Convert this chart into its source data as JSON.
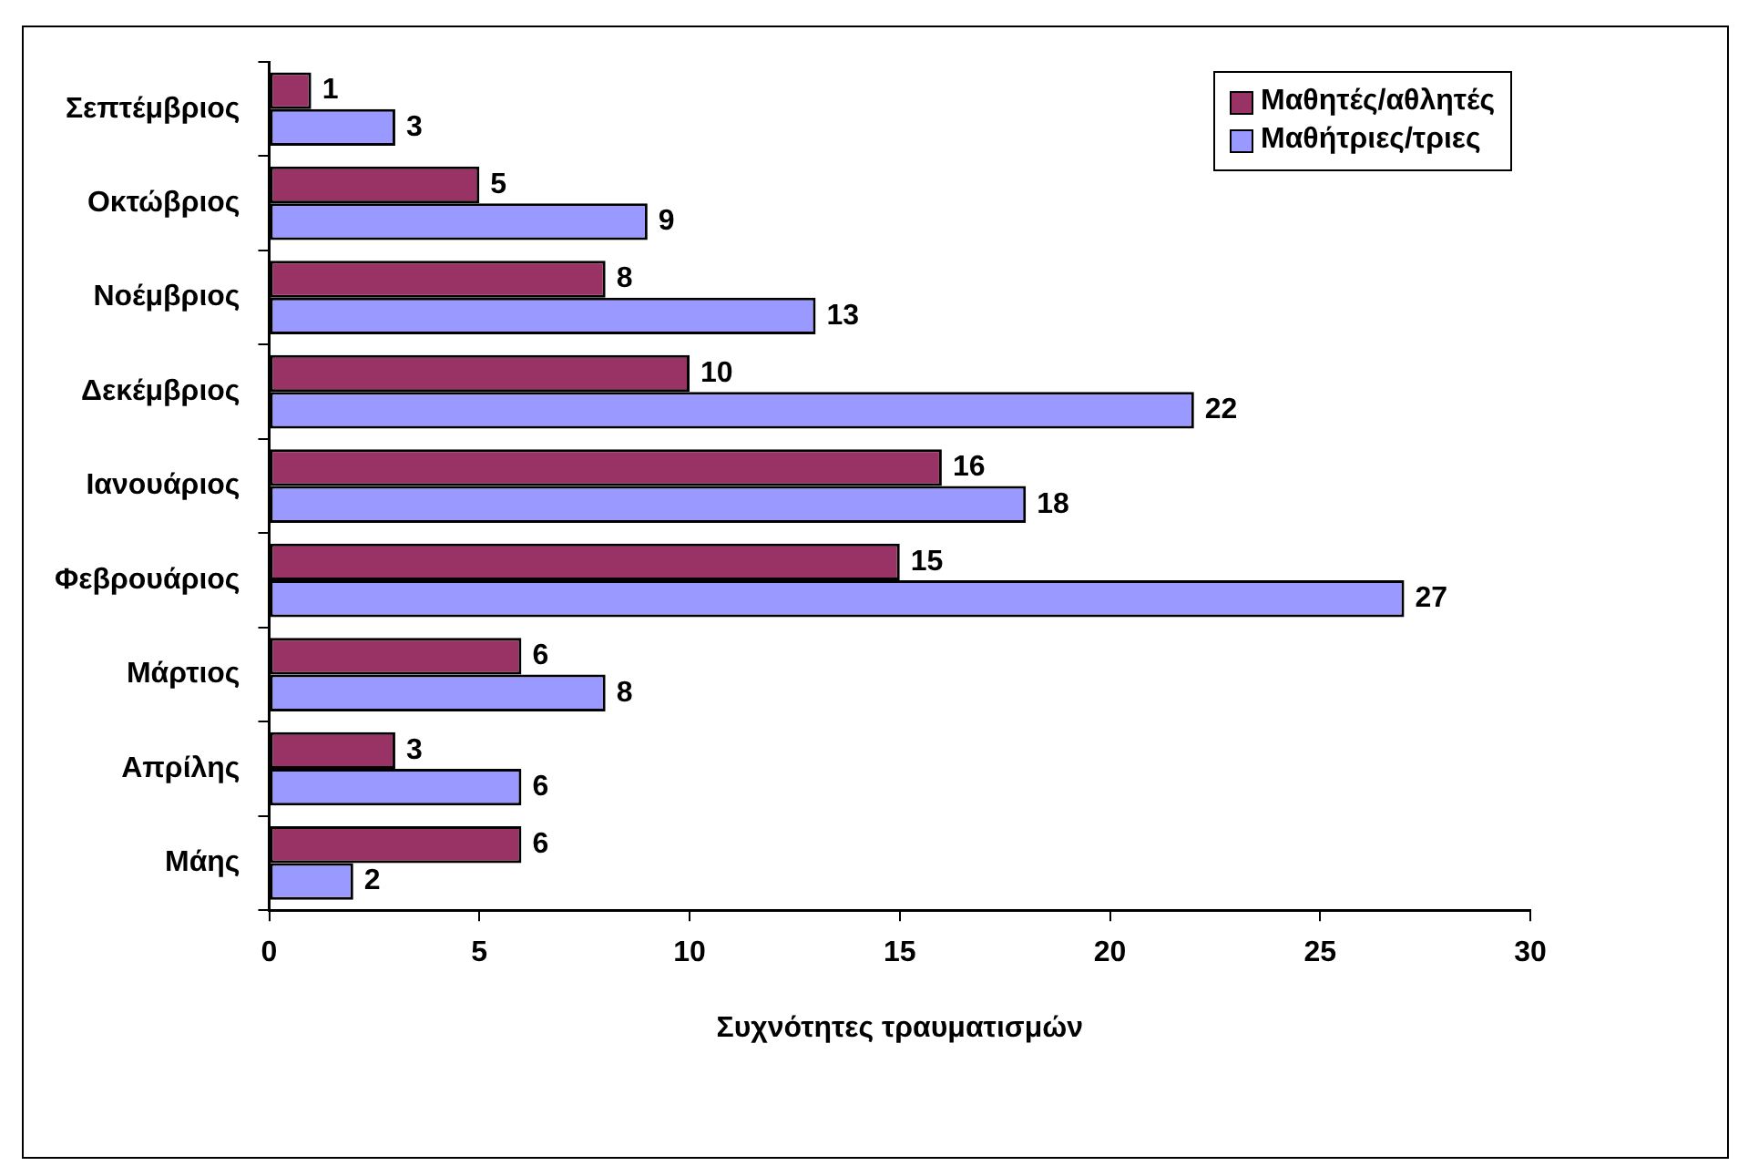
{
  "chart_data": {
    "type": "bar",
    "orientation": "horizontal",
    "xlabel": "Συχνότητες τραυματισμών",
    "categories": [
      "Σεπτέμβριος",
      "Οκτώβριος",
      "Νοέμβριος",
      "Δεκέμβριος",
      "Ιανουάριος",
      "Φεβρουάριος",
      "Μάρτιος",
      "Απρίλης",
      "Μάης"
    ],
    "series": [
      {
        "name": "Μαθητές/αθλητές",
        "color": "#993366",
        "values": [
          1,
          5,
          8,
          10,
          16,
          15,
          6,
          3,
          6
        ]
      },
      {
        "name": "Μαθήτριες/τριες",
        "color": "#9999ff",
        "values": [
          3,
          9,
          13,
          22,
          18,
          27,
          8,
          6,
          2
        ]
      }
    ],
    "xlim": [
      0,
      30
    ],
    "xticks": [
      0,
      5,
      10,
      15,
      20,
      25,
      30
    ],
    "data_labels": true,
    "legend": "top right"
  }
}
